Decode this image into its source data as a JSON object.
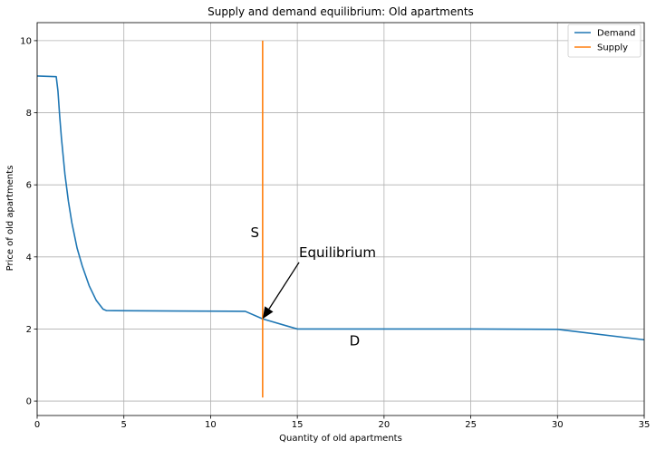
{
  "chart_data": {
    "type": "line",
    "title": "Supply and demand equilibrium: Old apartments",
    "xlabel": "Quantity of old apartments",
    "ylabel": "Price of old apartments",
    "xlim": [
      0,
      35
    ],
    "ylim": [
      -0.4,
      10.5
    ],
    "xticks": [
      0,
      5,
      10,
      15,
      20,
      25,
      30,
      35
    ],
    "yticks": [
      0,
      2,
      4,
      6,
      8,
      10
    ],
    "grid": true,
    "legend_position": "top-right",
    "series": [
      {
        "name": "Demand",
        "color": "#1f77b4",
        "x": [
          0,
          1.1,
          1.2,
          1.3,
          1.4,
          1.6,
          1.8,
          2.0,
          2.3,
          2.6,
          3.0,
          3.4,
          3.8,
          4.0,
          8,
          12,
          13,
          15,
          20,
          25,
          30,
          35
        ],
        "y": [
          9.02,
          9.0,
          8.6,
          7.9,
          7.3,
          6.3,
          5.55,
          4.95,
          4.25,
          3.75,
          3.2,
          2.8,
          2.55,
          2.51,
          2.5,
          2.49,
          2.28,
          2.0,
          2.0,
          2.0,
          1.99,
          1.7
        ]
      },
      {
        "name": "Supply",
        "color": "#ff7f0e",
        "x": [
          13,
          13
        ],
        "y": [
          0.1,
          10.0
        ]
      }
    ],
    "annotations": [
      {
        "text": "S",
        "x": 12.3,
        "y": 4.55
      },
      {
        "text": "D",
        "x": 18.0,
        "y": 1.55
      },
      {
        "text": "Equilibrium",
        "x": 15.1,
        "y": 4.0,
        "arrow_to": [
          13,
          2.28
        ]
      }
    ]
  }
}
